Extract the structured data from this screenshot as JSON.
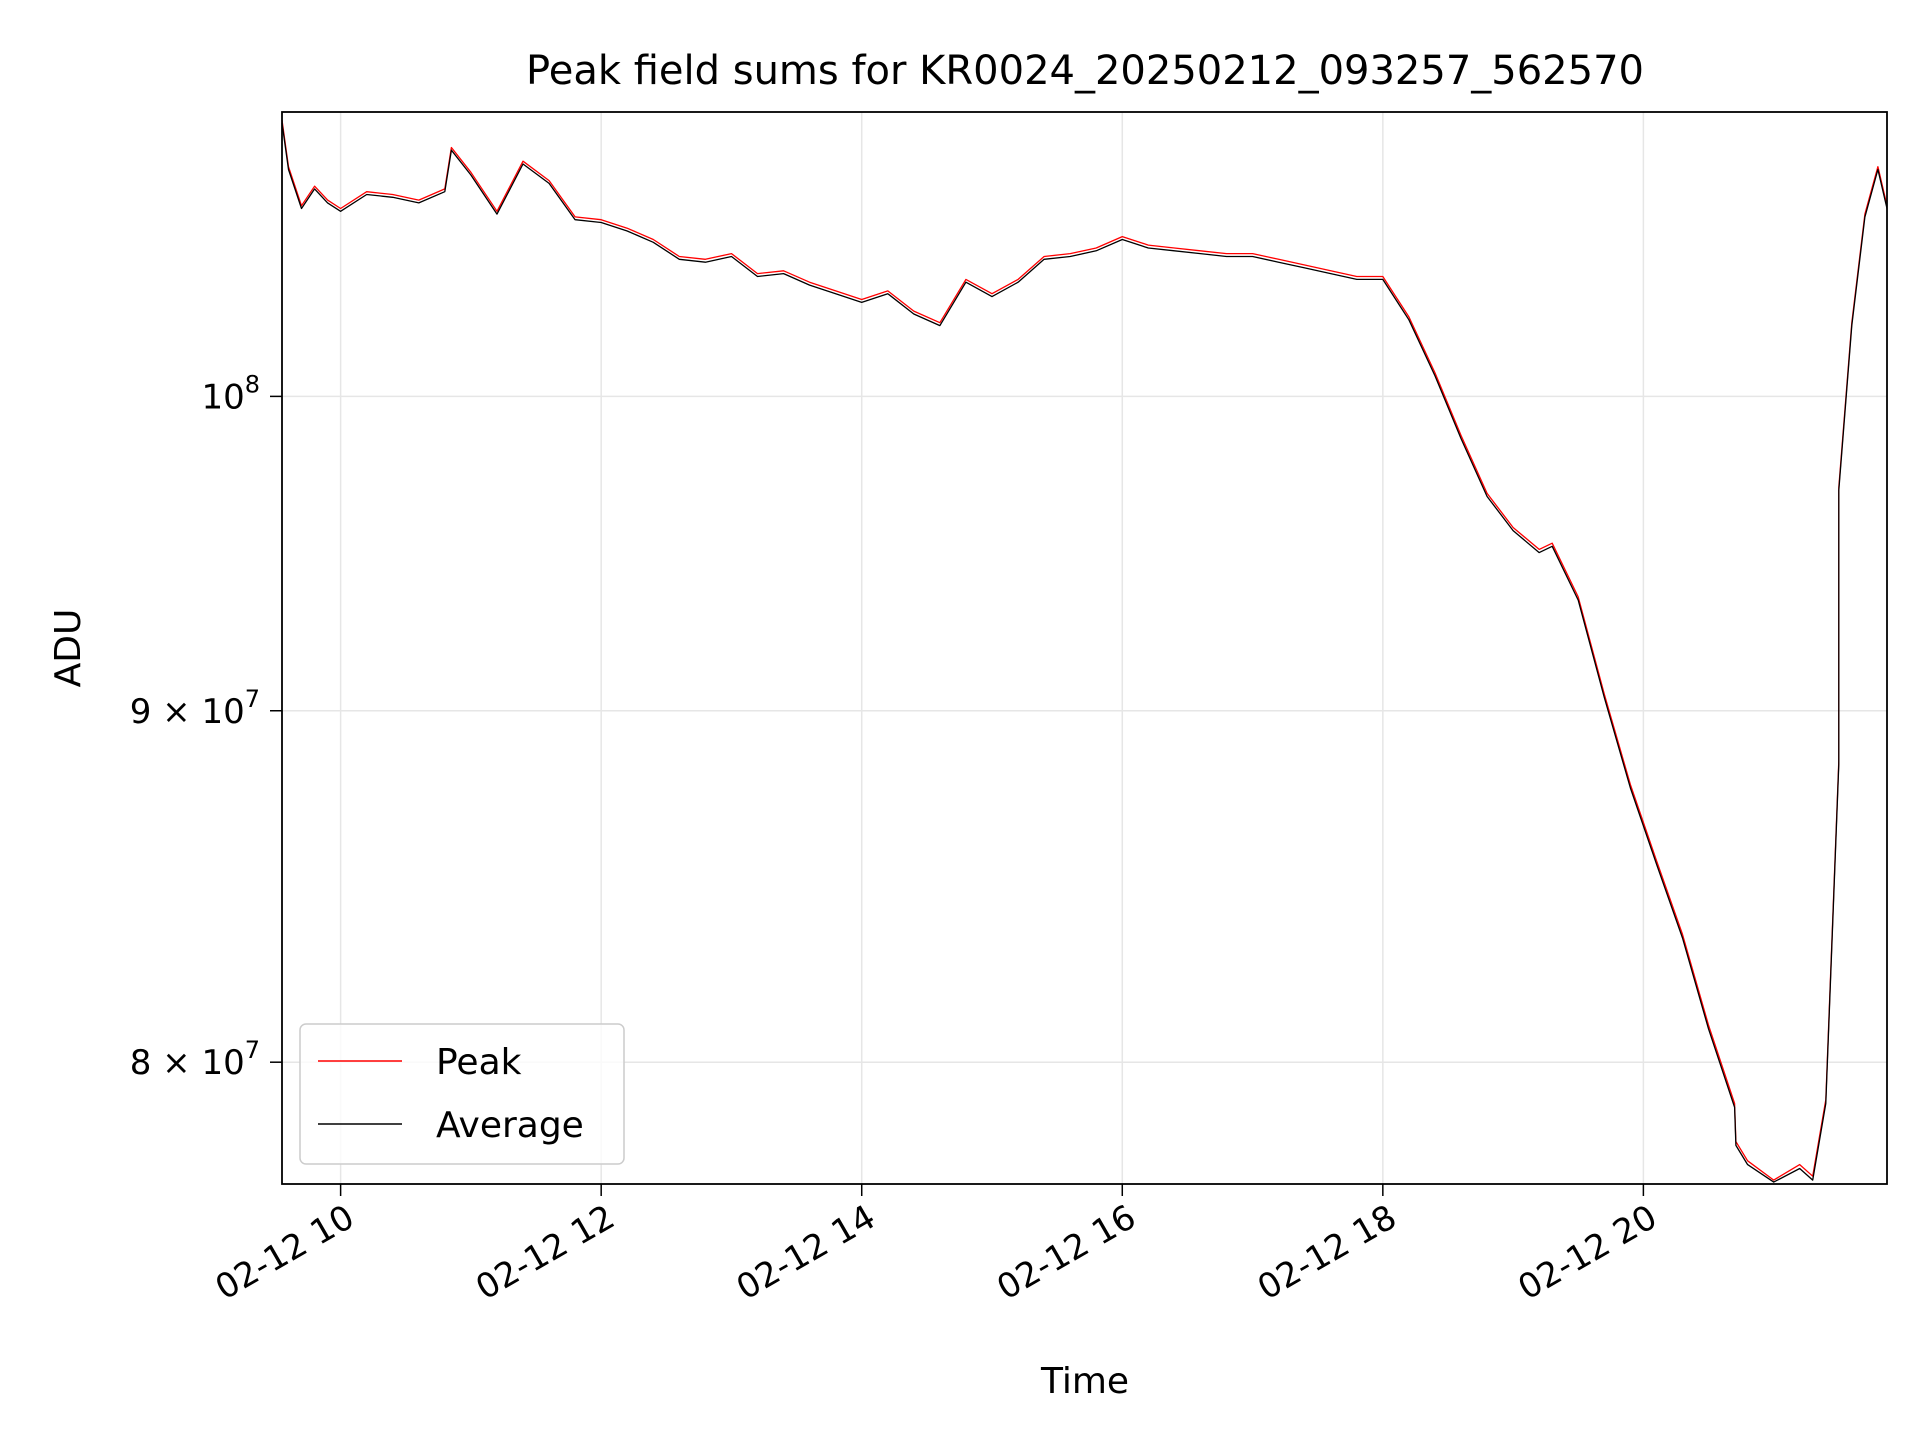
{
  "chart_data": {
    "type": "line",
    "title": "Peak field sums for KR0024_20250212_093257_562570",
    "xlabel": "Time",
    "ylabel": "ADU",
    "yscale": "log",
    "grid": true,
    "legend_loc": "lower-left",
    "x_unit": "hours since 02-12 00:00",
    "xlim": [
      9.55,
      21.87
    ],
    "ylim": [
      76800000,
      110000000
    ],
    "x_ticks": [
      {
        "value": 10,
        "label": "02-12 10"
      },
      {
        "value": 12,
        "label": "02-12 12"
      },
      {
        "value": 14,
        "label": "02-12 14"
      },
      {
        "value": 16,
        "label": "02-12 16"
      },
      {
        "value": 18,
        "label": "02-12 18"
      },
      {
        "value": 20,
        "label": "02-12 20"
      }
    ],
    "y_ticks": [
      {
        "value": 100000000,
        "base": "10",
        "exp": "8",
        "coef": ""
      },
      {
        "value": 90000000,
        "base": "10",
        "exp": "7",
        "coef": "9"
      },
      {
        "value": 80000000,
        "base": "10",
        "exp": "7",
        "coef": "8"
      }
    ],
    "series": [
      {
        "name": "Peak",
        "color": "#ff0000",
        "points": [
          [
            9.55,
            109700000
          ],
          [
            9.6,
            108000000
          ],
          [
            9.7,
            106600000
          ],
          [
            9.8,
            107300000
          ],
          [
            9.9,
            106800000
          ],
          [
            10.0,
            106500000
          ],
          [
            10.2,
            107100000
          ],
          [
            10.4,
            107000000
          ],
          [
            10.6,
            106800000
          ],
          [
            10.8,
            107200000
          ],
          [
            10.85,
            108700000
          ],
          [
            11.0,
            107800000
          ],
          [
            11.2,
            106400000
          ],
          [
            11.4,
            108200000
          ],
          [
            11.6,
            107500000
          ],
          [
            11.8,
            106200000
          ],
          [
            12.0,
            106100000
          ],
          [
            12.2,
            105800000
          ],
          [
            12.4,
            105400000
          ],
          [
            12.6,
            104800000
          ],
          [
            12.8,
            104700000
          ],
          [
            13.0,
            104900000
          ],
          [
            13.2,
            104200000
          ],
          [
            13.4,
            104300000
          ],
          [
            13.6,
            103900000
          ],
          [
            13.8,
            103600000
          ],
          [
            14.0,
            103300000
          ],
          [
            14.2,
            103600000
          ],
          [
            14.4,
            102900000
          ],
          [
            14.6,
            102500000
          ],
          [
            14.8,
            104000000
          ],
          [
            15.0,
            103500000
          ],
          [
            15.2,
            104000000
          ],
          [
            15.4,
            104800000
          ],
          [
            15.6,
            104900000
          ],
          [
            15.8,
            105100000
          ],
          [
            16.0,
            105500000
          ],
          [
            16.2,
            105200000
          ],
          [
            16.4,
            105100000
          ],
          [
            16.6,
            105000000
          ],
          [
            16.8,
            104900000
          ],
          [
            17.0,
            104900000
          ],
          [
            17.2,
            104700000
          ],
          [
            17.4,
            104500000
          ],
          [
            17.6,
            104300000
          ],
          [
            17.8,
            104100000
          ],
          [
            18.0,
            104100000
          ],
          [
            18.2,
            102700000
          ],
          [
            18.4,
            100800000
          ],
          [
            18.6,
            98700000
          ],
          [
            18.8,
            96800000
          ],
          [
            19.0,
            95700000
          ],
          [
            19.2,
            95000000
          ],
          [
            19.3,
            95200000
          ],
          [
            19.5,
            93500000
          ],
          [
            19.7,
            90500000
          ],
          [
            19.9,
            87800000
          ],
          [
            20.1,
            85600000
          ],
          [
            20.3,
            83500000
          ],
          [
            20.5,
            81000000
          ],
          [
            20.7,
            78900000
          ],
          [
            20.71,
            77900000
          ],
          [
            20.8,
            77400000
          ],
          [
            21.0,
            76900000
          ],
          [
            21.2,
            77300000
          ],
          [
            21.3,
            77000000
          ],
          [
            21.4,
            79000000
          ],
          [
            21.5,
            88500000
          ],
          [
            21.5,
            97000000
          ],
          [
            21.6,
            102500000
          ],
          [
            21.7,
            106300000
          ],
          [
            21.8,
            108000000
          ],
          [
            21.87,
            106600000
          ]
        ]
      },
      {
        "name": "Average",
        "color": "#000000",
        "points": [
          [
            9.55,
            109600000
          ],
          [
            9.6,
            107900000
          ],
          [
            9.7,
            106500000
          ],
          [
            9.8,
            107200000
          ],
          [
            9.9,
            106700000
          ],
          [
            10.0,
            106400000
          ],
          [
            10.2,
            107000000
          ],
          [
            10.4,
            106900000
          ],
          [
            10.6,
            106700000
          ],
          [
            10.8,
            107100000
          ],
          [
            10.85,
            108600000
          ],
          [
            11.0,
            107700000
          ],
          [
            11.2,
            106300000
          ],
          [
            11.4,
            108100000
          ],
          [
            11.6,
            107400000
          ],
          [
            11.8,
            106100000
          ],
          [
            12.0,
            106000000
          ],
          [
            12.2,
            105700000
          ],
          [
            12.4,
            105300000
          ],
          [
            12.6,
            104700000
          ],
          [
            12.8,
            104600000
          ],
          [
            13.0,
            104800000
          ],
          [
            13.2,
            104100000
          ],
          [
            13.4,
            104200000
          ],
          [
            13.6,
            103800000
          ],
          [
            13.8,
            103500000
          ],
          [
            14.0,
            103200000
          ],
          [
            14.2,
            103500000
          ],
          [
            14.4,
            102800000
          ],
          [
            14.6,
            102400000
          ],
          [
            14.8,
            103900000
          ],
          [
            15.0,
            103400000
          ],
          [
            15.2,
            103900000
          ],
          [
            15.4,
            104700000
          ],
          [
            15.6,
            104800000
          ],
          [
            15.8,
            105000000
          ],
          [
            16.0,
            105400000
          ],
          [
            16.2,
            105100000
          ],
          [
            16.4,
            105000000
          ],
          [
            16.6,
            104900000
          ],
          [
            16.8,
            104800000
          ],
          [
            17.0,
            104800000
          ],
          [
            17.2,
            104600000
          ],
          [
            17.4,
            104400000
          ],
          [
            17.6,
            104200000
          ],
          [
            17.8,
            104000000
          ],
          [
            18.0,
            104000000
          ],
          [
            18.2,
            102600000
          ],
          [
            18.4,
            100700000
          ],
          [
            18.6,
            98600000
          ],
          [
            18.8,
            96700000
          ],
          [
            19.0,
            95600000
          ],
          [
            19.2,
            94900000
          ],
          [
            19.3,
            95100000
          ],
          [
            19.5,
            93400000
          ],
          [
            19.7,
            90400000
          ],
          [
            19.9,
            87700000
          ],
          [
            20.1,
            85500000
          ],
          [
            20.3,
            83400000
          ],
          [
            20.5,
            80900000
          ],
          [
            20.7,
            78800000
          ],
          [
            20.71,
            77800000
          ],
          [
            20.8,
            77300000
          ],
          [
            21.0,
            76850000
          ],
          [
            21.2,
            77200000
          ],
          [
            21.3,
            76900000
          ],
          [
            21.4,
            78900000
          ],
          [
            21.5,
            88400000
          ],
          [
            21.5,
            96900000
          ],
          [
            21.6,
            102400000
          ],
          [
            21.7,
            106200000
          ],
          [
            21.8,
            107900000
          ],
          [
            21.87,
            106500000
          ]
        ]
      }
    ]
  }
}
